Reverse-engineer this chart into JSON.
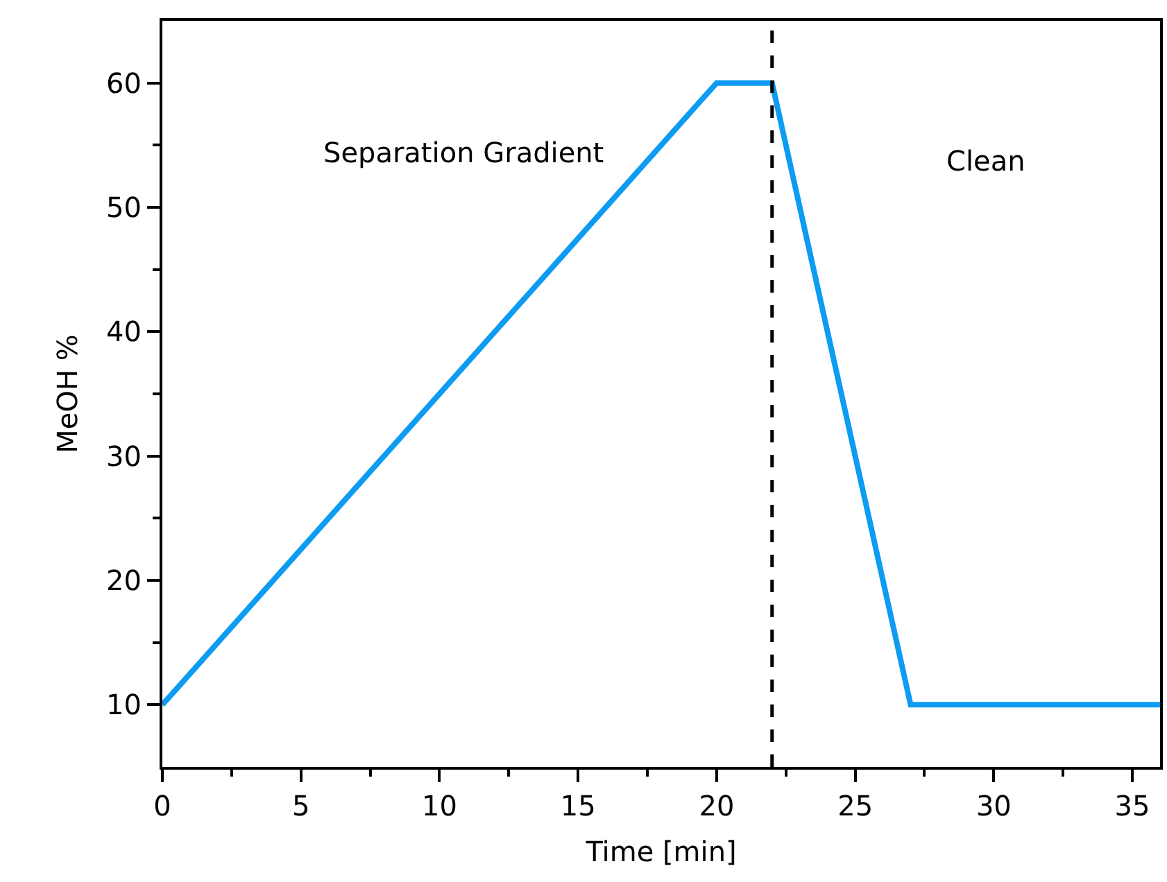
{
  "chart_data": {
    "type": "line",
    "xlabel": "Time [min]",
    "ylabel": "MeOH %",
    "series": [
      {
        "x": [
          0,
          20,
          22,
          27,
          36
        ],
        "values": [
          10,
          60,
          60,
          10,
          10
        ],
        "color": "#0d9cf2"
      }
    ],
    "xlim": [
      0,
      36
    ],
    "ylim": [
      5,
      65
    ],
    "xticks": [
      0,
      {
        "value": 2.5,
        "label": null
      },
      5,
      {
        "value": 7.5,
        "label": null
      },
      10,
      {
        "value": 12.5,
        "label": null
      },
      15,
      {
        "value": 17.5,
        "label": null
      },
      20,
      {
        "value": 22.5,
        "label": null
      },
      25,
      {
        "value": 27.5,
        "label": null
      },
      30,
      {
        "value": 32.5,
        "label": null
      },
      35
    ],
    "yticks": [
      10,
      {
        "value": 15,
        "label": null
      },
      20,
      {
        "value": 25,
        "label": null
      },
      30,
      {
        "value": 35,
        "label": null
      },
      40,
      {
        "value": 45,
        "label": null
      },
      50,
      {
        "value": 55,
        "label": null
      },
      60
    ],
    "ref_lines": [
      {
        "axis": "x",
        "value": 22,
        "color": "#000000",
        "line_style": "dashed"
      }
    ],
    "annotations": [
      "Separation Gradient",
      "Clean"
    ],
    "marker": "none",
    "line_style": "solid"
  }
}
